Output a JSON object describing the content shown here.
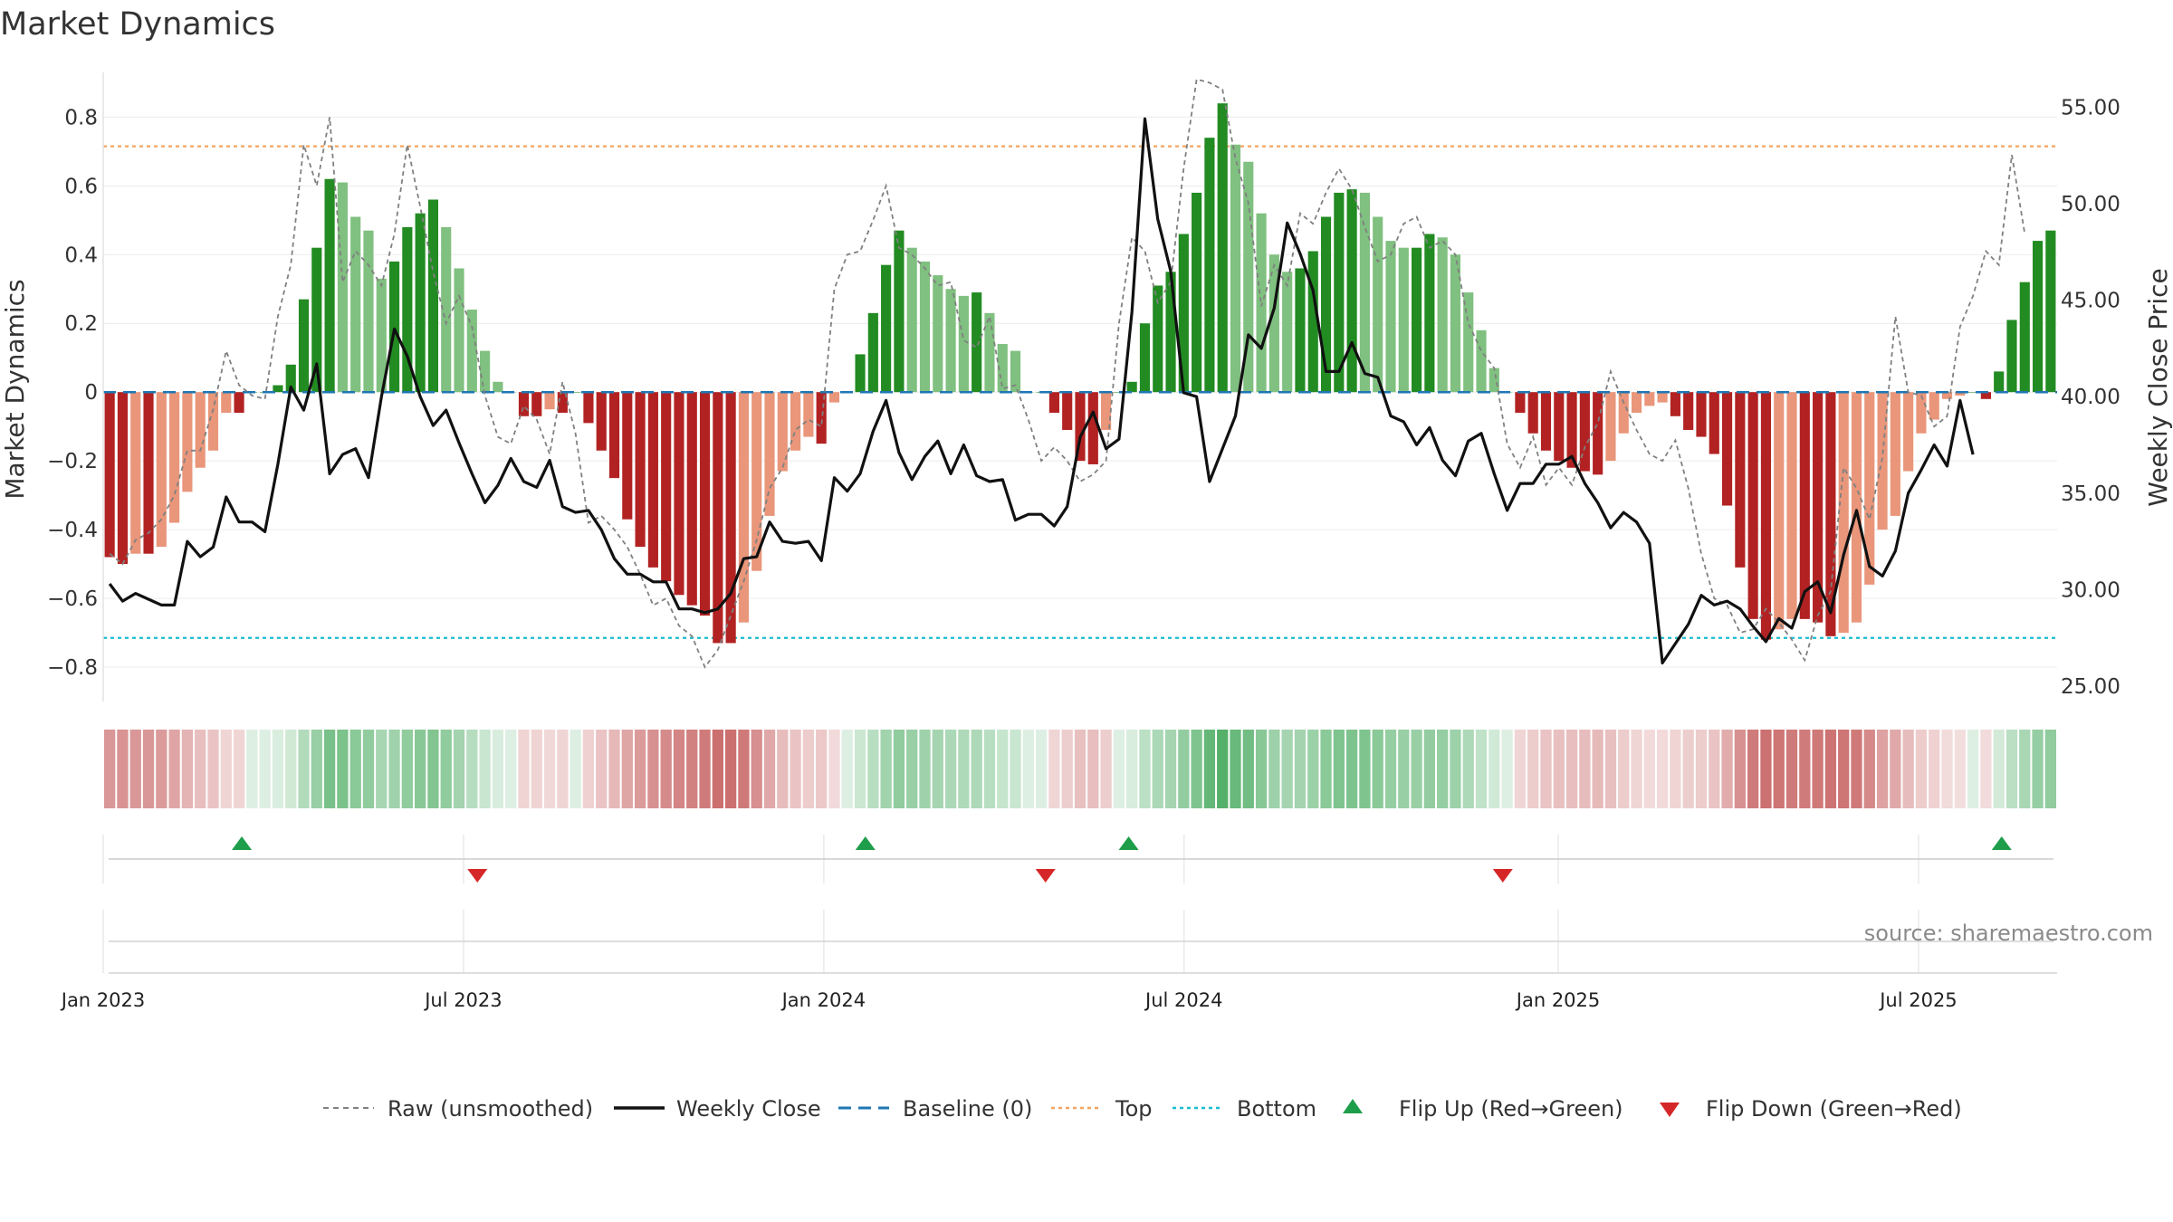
{
  "title": "Market Dynamics",
  "source": "source: sharemaestro.com",
  "colors": {
    "strong_green": "#228B22",
    "light_green": "#80C080",
    "strong_red": "#B22222",
    "light_red": "#E9967A",
    "raw_line": "#808080",
    "close_line": "#111111",
    "baseline": "#1F77B4",
    "top_line": "#F4A460",
    "bottom_line": "#17BECF",
    "flip_up": "#1E9E4A",
    "flip_down": "#D62728"
  },
  "chart_data": {
    "type": "bar",
    "title": "Market Dynamics",
    "ylabel": "Market Dynamics",
    "y2label": "Weekly Close Price",
    "ylim": [
      -0.9,
      0.93
    ],
    "y2lim": [
      24.2,
      56.8
    ],
    "yticks": [
      "0.8",
      "0.6",
      "0.4",
      "0.2",
      "0",
      "−0.2",
      "−0.4",
      "−0.6",
      "−0.8"
    ],
    "y2ticks": [
      "55.00",
      "50.00",
      "45.00",
      "40.00",
      "35.00",
      "30.00",
      "25.00"
    ],
    "xticks": [
      "Jan 2023",
      "Jul 2023",
      "Jan 2024",
      "Jul 2024",
      "Jan 2025",
      "Jul 2025"
    ],
    "x_start": "2023-01-02",
    "x_end": "2025-09-15",
    "top_level": 0.715,
    "bottom_level": -0.715,
    "baseline": 0,
    "bar_values": [
      -0.48,
      -0.5,
      -0.47,
      -0.47,
      -0.45,
      -0.38,
      -0.29,
      -0.22,
      -0.17,
      -0.06,
      -0.06,
      0,
      0,
      0.02,
      0.08,
      0.27,
      0.42,
      0.62,
      0.61,
      0.51,
      0.47,
      0.33,
      0.38,
      0.48,
      0.52,
      0.56,
      0.48,
      0.36,
      0.24,
      0.12,
      0.03,
      0,
      -0.07,
      -0.07,
      -0.05,
      -0.06,
      0,
      -0.09,
      -0.17,
      -0.25,
      -0.37,
      -0.45,
      -0.51,
      -0.55,
      -0.59,
      -0.62,
      -0.65,
      -0.73,
      -0.73,
      -0.67,
      -0.52,
      -0.36,
      -0.23,
      -0.17,
      -0.13,
      -0.15,
      -0.03,
      0,
      0.11,
      0.23,
      0.37,
      0.47,
      0.42,
      0.38,
      0.34,
      0.3,
      0.28,
      0.29,
      0.23,
      0.14,
      0.12,
      0,
      0,
      -0.06,
      -0.11,
      -0.2,
      -0.21,
      -0.11,
      0,
      0.03,
      0.2,
      0.31,
      0.35,
      0.46,
      0.58,
      0.74,
      0.84,
      0.72,
      0.67,
      0.52,
      0.4,
      0.35,
      0.36,
      0.41,
      0.51,
      0.58,
      0.59,
      0.58,
      0.51,
      0.44,
      0.42,
      0.42,
      0.46,
      0.45,
      0.4,
      0.29,
      0.18,
      0.07,
      0,
      -0.06,
      -0.12,
      -0.17,
      -0.2,
      -0.22,
      -0.23,
      -0.24,
      -0.2,
      -0.12,
      -0.06,
      -0.04,
      -0.03,
      -0.07,
      -0.11,
      -0.13,
      -0.18,
      -0.33,
      -0.51,
      -0.66,
      -0.72,
      -0.69,
      -0.66,
      -0.66,
      -0.67,
      -0.71,
      -0.7,
      -0.67,
      -0.56,
      -0.4,
      -0.36,
      -0.23,
      -0.12,
      -0.08,
      -0.02,
      -0.01,
      0,
      -0.02,
      0.06,
      0.21,
      0.32,
      0.44,
      0.47
    ],
    "raw_values": [
      -0.47,
      -0.5,
      -0.43,
      -0.41,
      -0.37,
      -0.3,
      -0.17,
      -0.17,
      -0.05,
      0.12,
      0.02,
      -0.01,
      -0.02,
      0.22,
      0.37,
      0.72,
      0.6,
      0.8,
      0.32,
      0.41,
      0.37,
      0.31,
      0.46,
      0.72,
      0.54,
      0.35,
      0.2,
      0.28,
      0.19,
      -0.01,
      -0.13,
      -0.15,
      -0.04,
      -0.08,
      -0.18,
      0.03,
      -0.12,
      -0.38,
      -0.36,
      -0.4,
      -0.45,
      -0.53,
      -0.62,
      -0.6,
      -0.68,
      -0.71,
      -0.8,
      -0.75,
      -0.65,
      -0.55,
      -0.43,
      -0.28,
      -0.22,
      -0.11,
      -0.08,
      -0.1,
      0.3,
      0.4,
      0.41,
      0.5,
      0.6,
      0.42,
      0.4,
      0.36,
      0.31,
      0.32,
      0.15,
      0.13,
      0.22,
      0.01,
      0.02,
      -0.08,
      -0.2,
      -0.16,
      -0.2,
      -0.26,
      -0.24,
      -0.2,
      0.2,
      0.45,
      0.41,
      0.26,
      0.32,
      0.65,
      0.91,
      0.9,
      0.88,
      0.68,
      0.55,
      0.25,
      0.37,
      0.31,
      0.52,
      0.49,
      0.58,
      0.65,
      0.59,
      0.48,
      0.38,
      0.4,
      0.49,
      0.51,
      0.42,
      0.44,
      0.4,
      0.2,
      0.12,
      0.07,
      -0.15,
      -0.22,
      -0.13,
      -0.27,
      -0.22,
      -0.27,
      -0.16,
      -0.09,
      0.06,
      -0.03,
      -0.11,
      -0.18,
      -0.2,
      -0.14,
      -0.28,
      -0.47,
      -0.6,
      -0.62,
      -0.7,
      -0.69,
      -0.63,
      -0.67,
      -0.72,
      -0.78,
      -0.65,
      -0.58,
      -0.22,
      -0.28,
      -0.37,
      -0.19,
      0.22,
      0.0,
      -0.01,
      -0.1,
      -0.07,
      0.19,
      0.28,
      0.41,
      0.37,
      0.69,
      0.46
    ],
    "close_values": [
      30.3,
      29.4,
      29.8,
      29.5,
      29.2,
      29.2,
      32.5,
      31.7,
      32.2,
      34.8,
      33.5,
      33.5,
      33.0,
      36.5,
      40.5,
      39.3,
      41.7,
      36.0,
      37.0,
      37.3,
      35.8,
      40.0,
      43.5,
      42.1,
      40.0,
      38.5,
      39.3,
      37.6,
      36.0,
      34.5,
      35.4,
      36.8,
      35.6,
      35.3,
      36.7,
      34.3,
      34.0,
      34.1,
      33.1,
      31.6,
      30.8,
      30.8,
      30.4,
      30.4,
      29.0,
      29.0,
      28.8,
      29.0,
      29.8,
      31.6,
      31.7,
      33.5,
      32.5,
      32.4,
      32.5,
      31.5,
      35.8,
      35.1,
      36.0,
      38.2,
      39.8,
      37.1,
      35.7,
      36.9,
      37.7,
      36.0,
      37.5,
      35.9,
      35.6,
      35.7,
      33.6,
      33.9,
      33.9,
      33.3,
      34.3,
      37.9,
      39.2,
      37.3,
      37.8,
      44.4,
      54.4,
      49.2,
      46.5,
      40.2,
      40.0,
      35.6,
      37.3,
      39.0,
      43.2,
      42.5,
      44.6,
      49.0,
      47.4,
      45.5,
      41.3,
      41.3,
      42.8,
      41.2,
      41.0,
      39.0,
      38.7,
      37.5,
      38.4,
      36.7,
      35.9,
      37.7,
      38.1,
      36.0,
      34.1,
      35.5,
      35.5,
      36.5,
      36.5,
      36.9,
      35.5,
      34.5,
      33.2,
      34.0,
      33.5,
      32.4,
      26.2,
      27.2,
      28.2,
      29.7,
      29.2,
      29.4,
      29.0,
      28.1,
      27.3,
      28.5,
      28.0,
      29.9,
      30.4,
      28.8,
      31.8,
      34.1,
      31.2,
      30.7,
      32.0,
      35.0,
      36.2,
      37.5,
      36.4,
      39.8,
      37.0
    ],
    "flip_up_dates": [
      "2023-03-13",
      "2024-01-22",
      "2024-06-03",
      "2025-08-18"
    ],
    "flip_down_dates": [
      "2023-07-10",
      "2024-04-22",
      "2024-12-09"
    ],
    "legend_position": "bottom"
  },
  "legend": {
    "raw": "Raw (unsmoothed)",
    "close": "Weekly Close",
    "baseline": "Baseline (0)",
    "top": "Top",
    "bottom": "Bottom",
    "flip_up": "Flip Up (Red→Green)",
    "flip_down": "Flip Down (Green→Red)"
  }
}
